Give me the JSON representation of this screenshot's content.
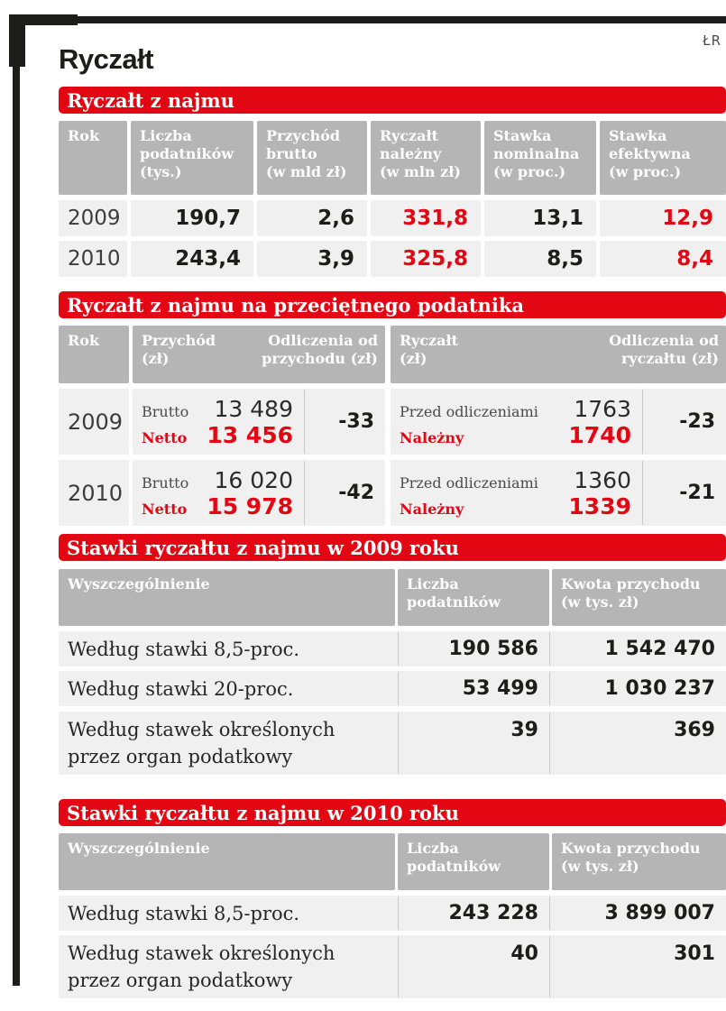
{
  "credit": "ŁR",
  "title": "Ryczałt",
  "colors": {
    "accent_red": "#e30613",
    "header_gray": "#b5b5b5",
    "row_gray": "#f0f0f0",
    "frame_black": "#1d1d1b"
  },
  "section1": {
    "banner": "Ryczałt z najmu",
    "headers": [
      "Rok",
      "Liczba\npodatników\n(tys.)",
      "Przychód\nbrutto\n(w mld zł)",
      "Ryczałt\nnależny\n(w mln zł)",
      "Stawka\nnominalna\n(w proc.)",
      "Stawka\nefektywna\n(w proc.)"
    ],
    "rows": [
      {
        "rok": "2009",
        "liczba": "190,7",
        "przychod": "2,6",
        "ryczalt": "331,8",
        "nominalna": "13,1",
        "efektywna": "12,9"
      },
      {
        "rok": "2010",
        "liczba": "243,4",
        "przychod": "3,9",
        "ryczalt": "325,8",
        "nominalna": "8,5",
        "efektywna": "8,4"
      }
    ]
  },
  "section2": {
    "banner": "Ryczałt z najmu na przeciętnego podatnika",
    "headers": {
      "rok": "Rok",
      "przychod": "Przychód\n(zł)",
      "odl_przychodu": "Odliczenia od\nprzychodu (zł)",
      "ryczalt": "Ryczałt\n(zł)",
      "odl_ryczaltu": "Odliczenia od\nryczałtu (zł)"
    },
    "rows": [
      {
        "rok": "2009",
        "brutto_label": "Brutto",
        "brutto": "13 489",
        "netto_label": "Netto",
        "netto": "13 456",
        "odl_przychodu": "-33",
        "przed_label": "Przed odliczeniami",
        "przed": "1763",
        "nalezny_label": "Należny",
        "nalezny": "1740",
        "odl_ryczaltu": "-23"
      },
      {
        "rok": "2010",
        "brutto_label": "Brutto",
        "brutto": "16 020",
        "netto_label": "Netto",
        "netto": "15 978",
        "odl_przychodu": "-42",
        "przed_label": "Przed odliczeniami",
        "przed": "1360",
        "nalezny_label": "Należny",
        "nalezny": "1339",
        "odl_ryczaltu": "-21"
      }
    ]
  },
  "section3": {
    "banner": "Stawki ryczałtu z najmu w 2009 roku",
    "headers": [
      "Wyszczególnienie",
      "Liczba\npodatników",
      "Kwota przychodu\n(w tys. zł)"
    ],
    "rows": [
      {
        "label": "Według stawki 8,5-proc.",
        "liczba": "190 586",
        "kwota": "1 542 470"
      },
      {
        "label": "Według stawki 20-proc.",
        "liczba": "53 499",
        "kwota": "1 030 237"
      },
      {
        "label": "Według stawek określonych\nprzez organ podatkowy",
        "liczba": "39",
        "kwota": "369"
      }
    ]
  },
  "section4": {
    "banner": "Stawki ryczałtu z najmu w 2010 roku",
    "headers": [
      "Wyszczególnienie",
      "Liczba\npodatników",
      "Kwota przychodu\n(w tys. zł)"
    ],
    "rows": [
      {
        "label": "Według stawki 8,5-proc.",
        "liczba": "243 228",
        "kwota": "3 899 007"
      },
      {
        "label": "Według stawek określonych\nprzez organ podatkowy",
        "liczba": "40",
        "kwota": "301"
      }
    ]
  },
  "chart_data": [
    {
      "type": "table",
      "title": "Ryczałt z najmu",
      "columns": [
        "Rok",
        "Liczba podatników (tys.)",
        "Przychód brutto (w mld zł)",
        "Ryczałt należny (w mln zł)",
        "Stawka nominalna (w proc.)",
        "Stawka efektywna (w proc.)"
      ],
      "rows": [
        [
          "2009",
          "190,7",
          "2,6",
          "331,8",
          "13,1",
          "12,9"
        ],
        [
          "2010",
          "243,4",
          "3,9",
          "325,8",
          "8,5",
          "8,4"
        ]
      ]
    },
    {
      "type": "table",
      "title": "Ryczałt z najmu na przeciętnego podatnika",
      "columns": [
        "Rok",
        "Przychód (zł) Brutto",
        "Przychód (zł) Netto",
        "Odliczenia od przychodu (zł)",
        "Ryczałt (zł) Przed odliczeniami",
        "Ryczałt (zł) Należny",
        "Odliczenia od ryczałtu (zł)"
      ],
      "rows": [
        [
          "2009",
          "13 489",
          "13 456",
          "-33",
          "1763",
          "1740",
          "-23"
        ],
        [
          "2010",
          "16 020",
          "15 978",
          "-42",
          "1360",
          "1339",
          "-21"
        ]
      ]
    },
    {
      "type": "table",
      "title": "Stawki ryczałtu z najmu w 2009 roku",
      "columns": [
        "Wyszczególnienie",
        "Liczba podatników",
        "Kwota przychodu (w tys. zł)"
      ],
      "rows": [
        [
          "Według stawki 8,5-proc.",
          "190 586",
          "1 542 470"
        ],
        [
          "Według stawki 20-proc.",
          "53 499",
          "1 030 237"
        ],
        [
          "Według stawek określonych przez organ podatkowy",
          "39",
          "369"
        ]
      ]
    },
    {
      "type": "table",
      "title": "Stawki ryczałtu z najmu w 2010 roku",
      "columns": [
        "Wyszczególnienie",
        "Liczba podatników",
        "Kwota przychodu (w tys. zł)"
      ],
      "rows": [
        [
          "Według stawki 8,5-proc.",
          "243 228",
          "3 899 007"
        ],
        [
          "Według stawek określonych przez organ podatkowy",
          "40",
          "301"
        ]
      ]
    }
  ]
}
